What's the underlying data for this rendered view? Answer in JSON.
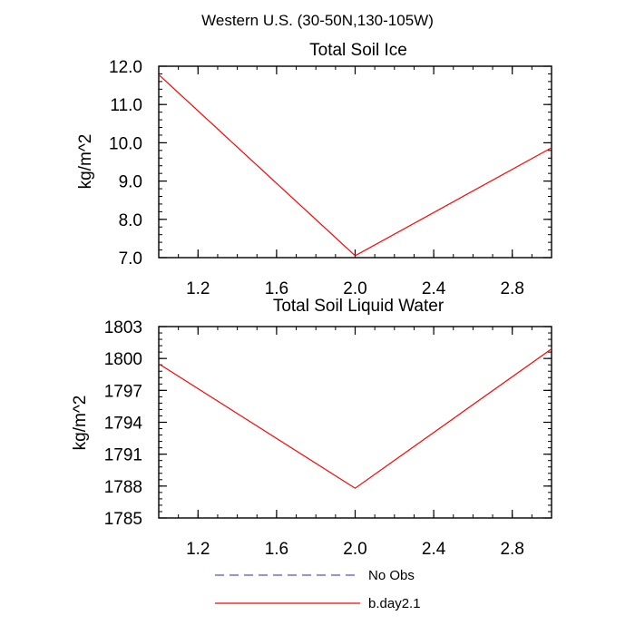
{
  "figure_title": "Western U.S. (30-50N,130-105W)",
  "chart_data": [
    {
      "type": "line",
      "title": "Total Soil Ice",
      "xlabel": "",
      "ylabel": "kg/m^2",
      "xlim": [
        1.0,
        3.0
      ],
      "ylim": [
        7.0,
        12.0
      ],
      "x_ticks": [
        "1.2",
        "1.6",
        "2.0",
        "2.4",
        "2.8"
      ],
      "y_ticks": [
        "7.0",
        "8.0",
        "9.0",
        "10.0",
        "11.0",
        "12.0"
      ],
      "series": [
        {
          "name": "b.day2.1",
          "color": "#ff0000",
          "dash": "solid",
          "x": [
            1.0,
            2.0,
            3.0
          ],
          "y": [
            11.78,
            7.05,
            9.87
          ]
        }
      ]
    },
    {
      "type": "line",
      "title": "Total Soil Liquid Water",
      "xlabel": "",
      "ylabel": "kg/m^2",
      "xlim": [
        1.0,
        3.0
      ],
      "ylim": [
        1785,
        1803
      ],
      "x_ticks": [
        "1.2",
        "1.6",
        "2.0",
        "2.4",
        "2.8"
      ],
      "y_ticks": [
        "1785",
        "1788",
        "1791",
        "1794",
        "1797",
        "1800",
        "1803"
      ],
      "series": [
        {
          "name": "b.day2.1",
          "color": "#ff0000",
          "dash": "solid",
          "x": [
            1.0,
            2.0,
            3.0
          ],
          "y": [
            1799.5,
            1787.8,
            1800.9
          ]
        }
      ]
    }
  ],
  "legend": [
    {
      "label": "No Obs",
      "color": "#5555cc",
      "dash": "dashed"
    },
    {
      "label": "b.day2.1",
      "color": "#ff0000",
      "dash": "solid"
    }
  ]
}
